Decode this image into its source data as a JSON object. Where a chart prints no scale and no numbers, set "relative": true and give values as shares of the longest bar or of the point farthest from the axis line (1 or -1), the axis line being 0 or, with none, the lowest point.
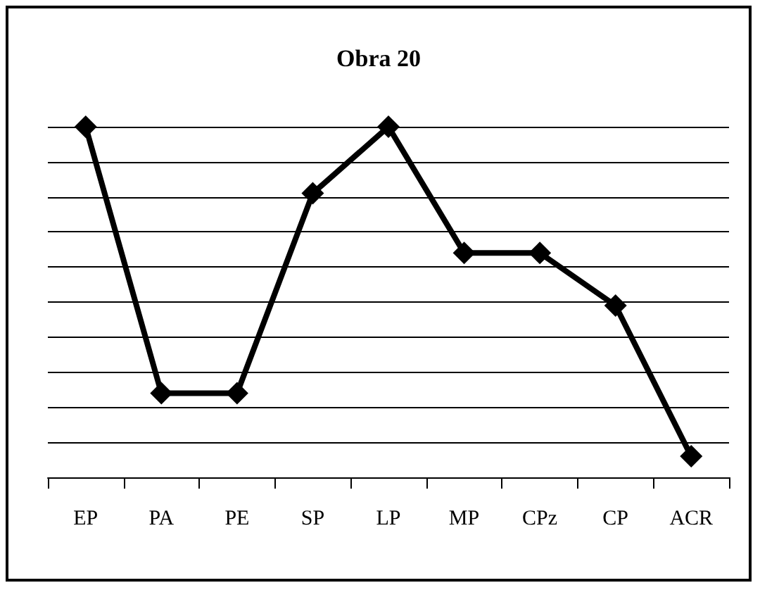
{
  "chart_data": {
    "type": "line",
    "title": "Obra 20",
    "categories": [
      "EP",
      "PA",
      "PE",
      "SP",
      "LP",
      "MP",
      "CPz",
      "CP",
      "ACR"
    ],
    "series": [
      {
        "color": "#000000",
        "values": [
          1,
          0.24,
          0.24,
          0.81,
          1,
          0.64,
          0.64,
          0.49,
          0.06
        ]
      }
    ],
    "relative": true,
    "grid": "y",
    "marker": "diamond",
    "line_style": "solid"
  }
}
